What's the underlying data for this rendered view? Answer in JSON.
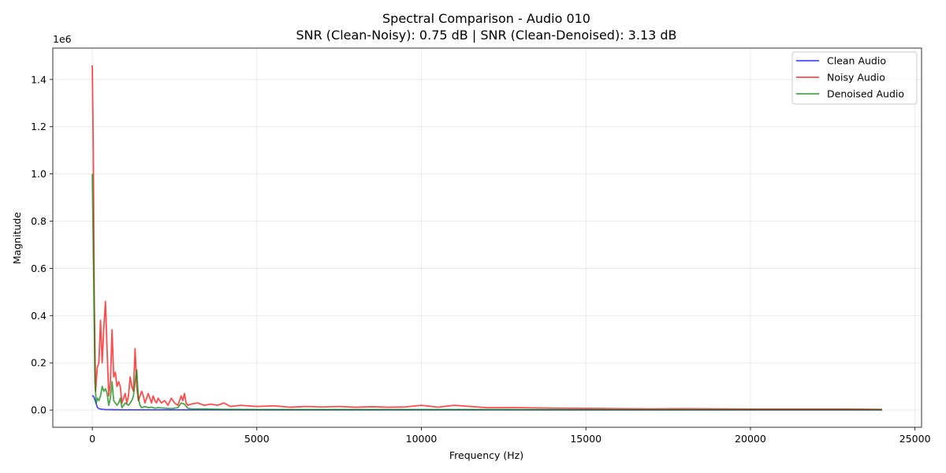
{
  "chart_data": {
    "type": "line",
    "title": "Spectral Comparison - Audio 010",
    "subtitle": "SNR (Clean-Noisy): 0.75 dB | SNR (Clean-Denoised): 3.13 dB",
    "xlabel": "Frequency (Hz)",
    "ylabel": "Magnitude",
    "y_offset_label": "1e6",
    "xlim": [
      -1200,
      25200
    ],
    "ylim": [
      -0.073,
      1.533
    ],
    "xticks": [
      0,
      5000,
      10000,
      15000,
      20000,
      25000
    ],
    "xtick_labels": [
      "0",
      "5000",
      "10000",
      "15000",
      "20000",
      "25000"
    ],
    "yticks": [
      0,
      0.2,
      0.4,
      0.6,
      0.8,
      1.0,
      1.2,
      1.4
    ],
    "ytick_labels": [
      "0.0",
      "0.2",
      "0.4",
      "0.6",
      "0.8",
      "1.0",
      "1.2",
      "1.4"
    ],
    "grid": true,
    "legend_position": "top-right",
    "series": [
      {
        "name": "Clean Audio",
        "color": "#0000ff",
        "x": [
          0,
          50,
          100,
          150,
          200,
          300,
          400,
          600,
          1000,
          2000,
          5000,
          10000,
          15000,
          20000,
          24000
        ],
        "values": [
          0.062,
          0.055,
          0.035,
          0.012,
          0.006,
          0.003,
          0.002,
          0.0015,
          0.001,
          0.001,
          0.001,
          0.001,
          0.001,
          0.001,
          0.001
        ]
      },
      {
        "name": "Noisy Audio",
        "color": "#ff0000",
        "x": [
          0,
          30,
          60,
          100,
          150,
          200,
          250,
          300,
          350,
          400,
          450,
          500,
          550,
          600,
          650,
          700,
          750,
          800,
          850,
          900,
          950,
          1000,
          1050,
          1100,
          1150,
          1200,
          1250,
          1300,
          1350,
          1400,
          1450,
          1500,
          1550,
          1600,
          1650,
          1700,
          1750,
          1800,
          1850,
          1900,
          1950,
          2000,
          2100,
          2200,
          2300,
          2400,
          2500,
          2600,
          2700,
          2750,
          2800,
          2850,
          2900,
          3000,
          3200,
          3400,
          3600,
          3800,
          4000,
          4200,
          4500,
          5000,
          5500,
          6000,
          6500,
          7000,
          7500,
          8000,
          8500,
          9000,
          9500,
          10000,
          10500,
          11000,
          11500,
          12000,
          13000,
          14000,
          15000,
          16000,
          17000,
          18000,
          19000,
          20000,
          21000,
          22000,
          23000,
          24000
        ],
        "values": [
          1.46,
          1.1,
          0.45,
          0.08,
          0.18,
          0.2,
          0.38,
          0.2,
          0.35,
          0.46,
          0.25,
          0.06,
          0.12,
          0.34,
          0.14,
          0.16,
          0.1,
          0.12,
          0.1,
          0.03,
          0.05,
          0.07,
          0.03,
          0.06,
          0.14,
          0.1,
          0.08,
          0.26,
          0.1,
          0.04,
          0.06,
          0.08,
          0.06,
          0.03,
          0.05,
          0.07,
          0.05,
          0.03,
          0.06,
          0.04,
          0.03,
          0.05,
          0.03,
          0.04,
          0.02,
          0.05,
          0.03,
          0.02,
          0.06,
          0.04,
          0.07,
          0.03,
          0.02,
          0.025,
          0.03,
          0.02,
          0.025,
          0.02,
          0.03,
          0.015,
          0.02,
          0.015,
          0.018,
          0.012,
          0.015,
          0.013,
          0.015,
          0.012,
          0.014,
          0.012,
          0.013,
          0.02,
          0.012,
          0.02,
          0.015,
          0.01,
          0.01,
          0.008,
          0.007,
          0.006,
          0.005,
          0.006,
          0.005,
          0.004,
          0.004,
          0.004,
          0.004,
          0.003
        ]
      },
      {
        "name": "Denoised Audio",
        "color": "#008000",
        "x": [
          0,
          40,
          80,
          120,
          160,
          200,
          250,
          300,
          350,
          400,
          450,
          500,
          550,
          600,
          650,
          700,
          750,
          800,
          850,
          900,
          950,
          1000,
          1100,
          1200,
          1250,
          1300,
          1350,
          1400,
          1450,
          1500,
          1600,
          1700,
          1800,
          1900,
          2000,
          2200,
          2400,
          2600,
          2700,
          2800,
          2900,
          3000,
          3500,
          4000,
          5000,
          6000,
          8000,
          10000,
          12000,
          15000,
          20000,
          24000
        ],
        "values": [
          1.0,
          0.6,
          0.12,
          0.03,
          0.05,
          0.04,
          0.06,
          0.1,
          0.08,
          0.09,
          0.07,
          0.02,
          0.05,
          0.12,
          0.04,
          0.03,
          0.02,
          0.03,
          0.05,
          0.01,
          0.02,
          0.03,
          0.02,
          0.04,
          0.06,
          0.12,
          0.17,
          0.05,
          0.02,
          0.01,
          0.015,
          0.01,
          0.012,
          0.008,
          0.01,
          0.008,
          0.006,
          0.01,
          0.03,
          0.025,
          0.008,
          0.005,
          0.004,
          0.003,
          0.002,
          0.002,
          0.002,
          0.002,
          0.002,
          0.001,
          0.001,
          0.001
        ]
      }
    ]
  }
}
